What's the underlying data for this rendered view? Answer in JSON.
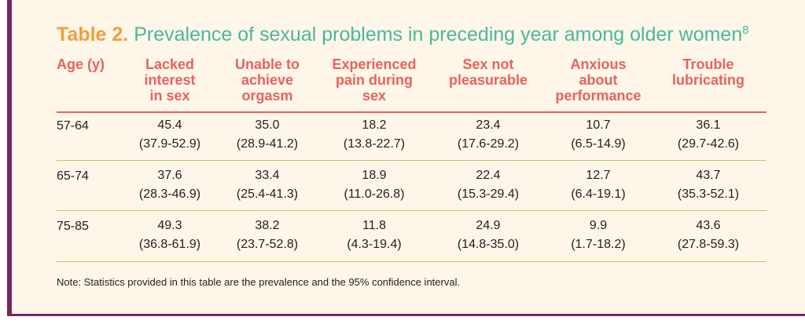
{
  "table": {
    "title_lead": "Table 2.",
    "title_rest": "Prevalence of sexual problems in preceding year among older women",
    "title_ref": "8",
    "headers": [
      "Age (y)",
      "Lacked\ninterest\nin sex",
      "Unable to\nachieve\norgasm",
      "Experienced\npain during\nsex",
      "Sex not\npleasurable",
      "Anxious\nabout\nperformance",
      "Trouble\nlubricating"
    ],
    "rows": [
      {
        "age": "57-64",
        "values": [
          "45.4",
          "35.0",
          "18.2",
          "23.4",
          "10.7",
          "36.1"
        ],
        "ci": [
          "(37.9-52.9)",
          "(28.9-41.2)",
          "(13.8-22.7)",
          "(17.6-29.2)",
          "(6.5-14.9)",
          "(29.7-42.6)"
        ]
      },
      {
        "age": "65-74",
        "values": [
          "37.6",
          "33.4",
          "18.9",
          "22.4",
          "12.7",
          "43.7"
        ],
        "ci": [
          "(28.3-46.9)",
          "(25.4-41.3)",
          "(11.0-26.8)",
          "(15.3-29.4)",
          "(6.4-19.1)",
          "(35.3-52.1)"
        ]
      },
      {
        "age": "75-85",
        "values": [
          "49.3",
          "38.2",
          "11.8",
          "24.9",
          "9.9",
          "43.6"
        ],
        "ci": [
          "(36.8-61.9)",
          "(23.7-52.8)",
          "(4.3-19.4)",
          "(14.8-35.0)",
          "(1.7-18.2)",
          "(27.8-59.3)"
        ]
      }
    ],
    "note": "Note: Statistics provided in this table are the prevalence and the 95% confidence interval."
  },
  "colors": {
    "title_lead": "#f0a03a",
    "title_rest": "#49b89c",
    "header": "#e8635c",
    "frame_accent": "#7b2360",
    "row_rule": "#b9cf5a",
    "background": "#fdf6e9"
  }
}
